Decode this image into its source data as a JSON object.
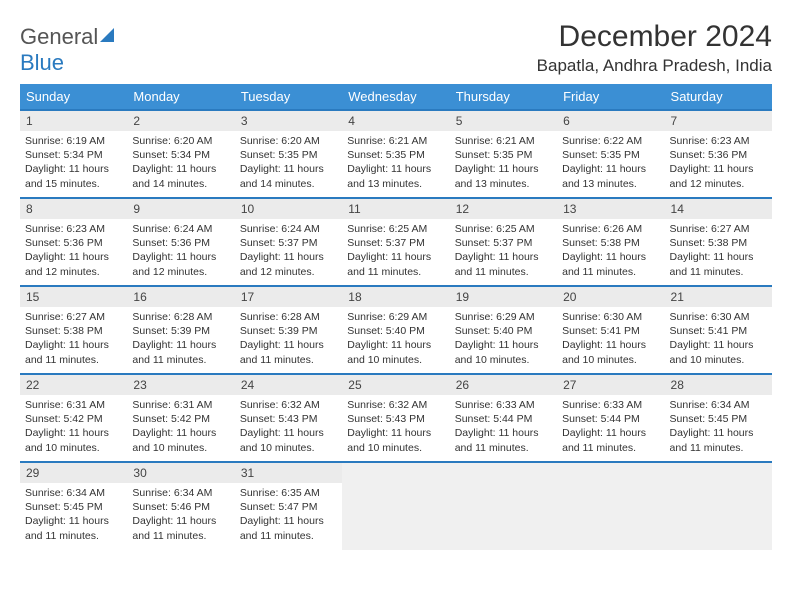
{
  "logo": {
    "part1": "General",
    "part2": "Blue"
  },
  "title": "December 2024",
  "location": "Bapatla, Andhra Pradesh, India",
  "header_bg": "#3b8fd4",
  "header_border": "#2a7abf",
  "weekdays": [
    "Sunday",
    "Monday",
    "Tuesday",
    "Wednesday",
    "Thursday",
    "Friday",
    "Saturday"
  ],
  "weeks": [
    [
      {
        "n": "1",
        "sr": "Sunrise: 6:19 AM",
        "ss": "Sunset: 5:34 PM",
        "dl": "Daylight: 11 hours and 15 minutes."
      },
      {
        "n": "2",
        "sr": "Sunrise: 6:20 AM",
        "ss": "Sunset: 5:34 PM",
        "dl": "Daylight: 11 hours and 14 minutes."
      },
      {
        "n": "3",
        "sr": "Sunrise: 6:20 AM",
        "ss": "Sunset: 5:35 PM",
        "dl": "Daylight: 11 hours and 14 minutes."
      },
      {
        "n": "4",
        "sr": "Sunrise: 6:21 AM",
        "ss": "Sunset: 5:35 PM",
        "dl": "Daylight: 11 hours and 13 minutes."
      },
      {
        "n": "5",
        "sr": "Sunrise: 6:21 AM",
        "ss": "Sunset: 5:35 PM",
        "dl": "Daylight: 11 hours and 13 minutes."
      },
      {
        "n": "6",
        "sr": "Sunrise: 6:22 AM",
        "ss": "Sunset: 5:35 PM",
        "dl": "Daylight: 11 hours and 13 minutes."
      },
      {
        "n": "7",
        "sr": "Sunrise: 6:23 AM",
        "ss": "Sunset: 5:36 PM",
        "dl": "Daylight: 11 hours and 12 minutes."
      }
    ],
    [
      {
        "n": "8",
        "sr": "Sunrise: 6:23 AM",
        "ss": "Sunset: 5:36 PM",
        "dl": "Daylight: 11 hours and 12 minutes."
      },
      {
        "n": "9",
        "sr": "Sunrise: 6:24 AM",
        "ss": "Sunset: 5:36 PM",
        "dl": "Daylight: 11 hours and 12 minutes."
      },
      {
        "n": "10",
        "sr": "Sunrise: 6:24 AM",
        "ss": "Sunset: 5:37 PM",
        "dl": "Daylight: 11 hours and 12 minutes."
      },
      {
        "n": "11",
        "sr": "Sunrise: 6:25 AM",
        "ss": "Sunset: 5:37 PM",
        "dl": "Daylight: 11 hours and 11 minutes."
      },
      {
        "n": "12",
        "sr": "Sunrise: 6:25 AM",
        "ss": "Sunset: 5:37 PM",
        "dl": "Daylight: 11 hours and 11 minutes."
      },
      {
        "n": "13",
        "sr": "Sunrise: 6:26 AM",
        "ss": "Sunset: 5:38 PM",
        "dl": "Daylight: 11 hours and 11 minutes."
      },
      {
        "n": "14",
        "sr": "Sunrise: 6:27 AM",
        "ss": "Sunset: 5:38 PM",
        "dl": "Daylight: 11 hours and 11 minutes."
      }
    ],
    [
      {
        "n": "15",
        "sr": "Sunrise: 6:27 AM",
        "ss": "Sunset: 5:38 PM",
        "dl": "Daylight: 11 hours and 11 minutes."
      },
      {
        "n": "16",
        "sr": "Sunrise: 6:28 AM",
        "ss": "Sunset: 5:39 PM",
        "dl": "Daylight: 11 hours and 11 minutes."
      },
      {
        "n": "17",
        "sr": "Sunrise: 6:28 AM",
        "ss": "Sunset: 5:39 PM",
        "dl": "Daylight: 11 hours and 11 minutes."
      },
      {
        "n": "18",
        "sr": "Sunrise: 6:29 AM",
        "ss": "Sunset: 5:40 PM",
        "dl": "Daylight: 11 hours and 10 minutes."
      },
      {
        "n": "19",
        "sr": "Sunrise: 6:29 AM",
        "ss": "Sunset: 5:40 PM",
        "dl": "Daylight: 11 hours and 10 minutes."
      },
      {
        "n": "20",
        "sr": "Sunrise: 6:30 AM",
        "ss": "Sunset: 5:41 PM",
        "dl": "Daylight: 11 hours and 10 minutes."
      },
      {
        "n": "21",
        "sr": "Sunrise: 6:30 AM",
        "ss": "Sunset: 5:41 PM",
        "dl": "Daylight: 11 hours and 10 minutes."
      }
    ],
    [
      {
        "n": "22",
        "sr": "Sunrise: 6:31 AM",
        "ss": "Sunset: 5:42 PM",
        "dl": "Daylight: 11 hours and 10 minutes."
      },
      {
        "n": "23",
        "sr": "Sunrise: 6:31 AM",
        "ss": "Sunset: 5:42 PM",
        "dl": "Daylight: 11 hours and 10 minutes."
      },
      {
        "n": "24",
        "sr": "Sunrise: 6:32 AM",
        "ss": "Sunset: 5:43 PM",
        "dl": "Daylight: 11 hours and 10 minutes."
      },
      {
        "n": "25",
        "sr": "Sunrise: 6:32 AM",
        "ss": "Sunset: 5:43 PM",
        "dl": "Daylight: 11 hours and 10 minutes."
      },
      {
        "n": "26",
        "sr": "Sunrise: 6:33 AM",
        "ss": "Sunset: 5:44 PM",
        "dl": "Daylight: 11 hours and 11 minutes."
      },
      {
        "n": "27",
        "sr": "Sunrise: 6:33 AM",
        "ss": "Sunset: 5:44 PM",
        "dl": "Daylight: 11 hours and 11 minutes."
      },
      {
        "n": "28",
        "sr": "Sunrise: 6:34 AM",
        "ss": "Sunset: 5:45 PM",
        "dl": "Daylight: 11 hours and 11 minutes."
      }
    ],
    [
      {
        "n": "29",
        "sr": "Sunrise: 6:34 AM",
        "ss": "Sunset: 5:45 PM",
        "dl": "Daylight: 11 hours and 11 minutes."
      },
      {
        "n": "30",
        "sr": "Sunrise: 6:34 AM",
        "ss": "Sunset: 5:46 PM",
        "dl": "Daylight: 11 hours and 11 minutes."
      },
      {
        "n": "31",
        "sr": "Sunrise: 6:35 AM",
        "ss": "Sunset: 5:47 PM",
        "dl": "Daylight: 11 hours and 11 minutes."
      },
      null,
      null,
      null,
      null
    ]
  ]
}
